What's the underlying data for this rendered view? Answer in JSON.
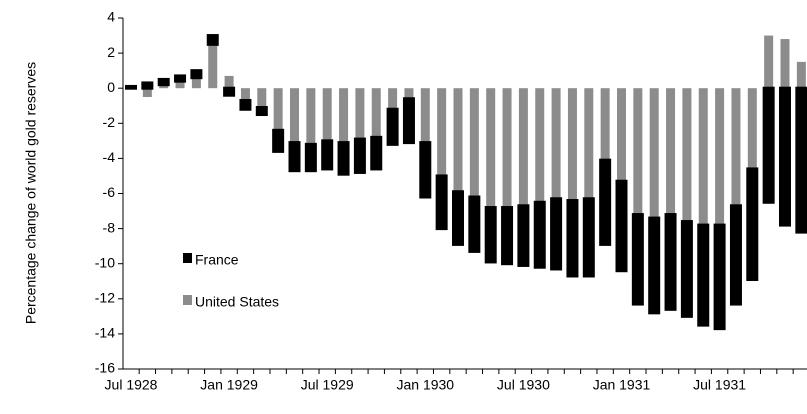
{
  "chart_data": {
    "type": "bar",
    "stacked": true,
    "ylabel": "Percentage change of world gold reserves",
    "categories": [
      "Jul 1928",
      null,
      null,
      null,
      null,
      null,
      "Jan 1929",
      null,
      null,
      null,
      null,
      null,
      "Jul 1929",
      null,
      null,
      null,
      null,
      null,
      "Jan 1930",
      null,
      null,
      null,
      null,
      null,
      "Jul 1930",
      null,
      null,
      null,
      null,
      null,
      "Jan 1931",
      null,
      null,
      null,
      null,
      null,
      "Jul 1931",
      null,
      null,
      null,
      null,
      null
    ],
    "series": [
      {
        "name": "United States",
        "color": "#8c8c8c",
        "values": [
          0,
          -0.5,
          0.2,
          0.4,
          0.6,
          2.5,
          0.7,
          -0.7,
          -1.1,
          -2.4,
          -3.1,
          -3.2,
          -3.0,
          -3.1,
          -2.9,
          -2.8,
          -1.2,
          -0.6,
          -3.1,
          -5.0,
          -5.9,
          -6.2,
          -6.8,
          -6.8,
          -6.7,
          -6.5,
          -6.3,
          -6.4,
          -6.3,
          -4.1,
          -5.3,
          -7.2,
          -7.4,
          -7.2,
          -7.6,
          -7.8,
          -7.8,
          -6.7,
          -4.6,
          3.0,
          2.8,
          1.5
        ]
      },
      {
        "name": "France",
        "color": "#000000",
        "values": [
          0.1,
          0.3,
          0.3,
          0.3,
          0.4,
          0.5,
          -0.4,
          -0.5,
          -0.4,
          -1.2,
          -1.6,
          -1.5,
          -1.6,
          -1.8,
          -1.9,
          -1.8,
          -2.0,
          -2.5,
          -3.1,
          -3.0,
          -3.0,
          -3.1,
          -3.1,
          -3.2,
          -3.4,
          -3.7,
          -4.0,
          -4.3,
          -4.4,
          -4.8,
          -5.1,
          -5.1,
          -5.4,
          -5.4,
          -5.4,
          -5.7,
          -5.9,
          -5.6,
          -6.3,
          -6.5,
          -7.8,
          -8.2
        ]
      }
    ],
    "ylim": [
      -16,
      4
    ],
    "yticks": [
      -16,
      -14,
      -12,
      -10,
      -8,
      -6,
      -4,
      -2,
      0,
      2,
      4
    ],
    "grid": false,
    "legend": "lower left"
  }
}
